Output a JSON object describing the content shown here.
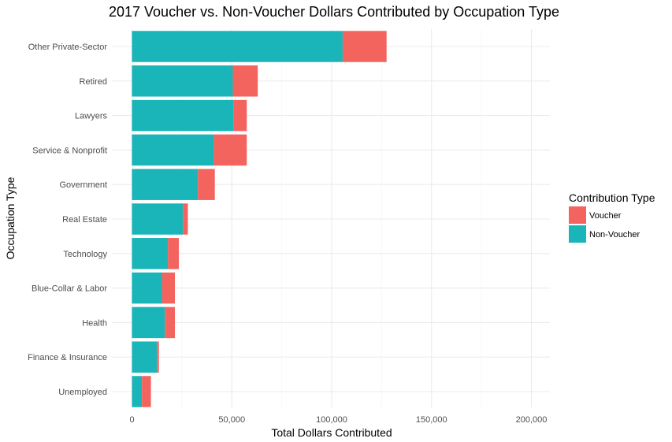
{
  "chart_data": {
    "type": "bar",
    "orientation": "horizontal",
    "stacked": true,
    "title": "2017 Voucher vs. Non-Voucher Dollars Contributed by Occupation Type",
    "xlabel": "Total Dollars Contributed",
    "ylabel": "Occupation Type",
    "xlim": [
      0,
      200000
    ],
    "x_ticks": [
      "0",
      "50,000",
      "100,000",
      "150,000",
      "200,000"
    ],
    "x_tick_values": [
      0,
      50000,
      100000,
      150000,
      200000
    ],
    "grid": true,
    "legend_placement": "right",
    "legend_title": "Contribution Type",
    "categories": [
      "Other Private-Sector",
      "Retired",
      "Lawyers",
      "Service & Nonprofit",
      "Government",
      "Real Estate",
      "Technology",
      "Blue-Collar & Labor",
      "Health",
      "Finance & Insurance",
      "Unemployed"
    ],
    "series": [
      {
        "name": "Non-Voucher",
        "color": "#1ab5b8",
        "values": [
          105500,
          50500,
          51000,
          41000,
          33000,
          25500,
          18000,
          15000,
          16500,
          12500,
          5000
        ]
      },
      {
        "name": "Voucher",
        "color": "#f4645f",
        "values": [
          22000,
          12500,
          6500,
          16500,
          8500,
          2500,
          5500,
          6500,
          5000,
          1000,
          4500
        ]
      }
    ],
    "legend_order": [
      "Voucher",
      "Non-Voucher"
    ]
  }
}
